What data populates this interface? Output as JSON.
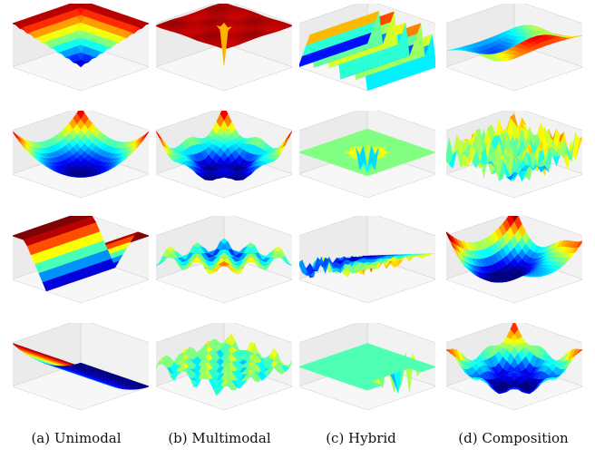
{
  "captions": {
    "a": "(a) Unimodal",
    "b": "(b) Multimodal",
    "c": "(c) Hybrid",
    "d": "(d) Composition"
  },
  "colormap": [
    "#00007f",
    "#0000ff",
    "#0080ff",
    "#00ffff",
    "#80ff80",
    "#ffff00",
    "#ff8000",
    "#ff0000",
    "#7f0000"
  ],
  "rows": [
    [
      {
        "id": "a1",
        "surface": "v-shape"
      },
      {
        "id": "b1",
        "surface": "flat-plateau-with-spike"
      },
      {
        "id": "c1",
        "surface": "stacked-ridges"
      },
      {
        "id": "d1",
        "surface": "wavy-sheet"
      }
    ],
    [
      {
        "id": "a2",
        "surface": "bowl"
      },
      {
        "id": "b2",
        "surface": "bumpy-bowl"
      },
      {
        "id": "c2",
        "surface": "plateau-with-crater"
      },
      {
        "id": "d2",
        "surface": "noisy-field"
      }
    ],
    [
      {
        "id": "a3",
        "surface": "valley"
      },
      {
        "id": "b3",
        "surface": "ripple-field"
      },
      {
        "id": "c3",
        "surface": "ramp-spikes"
      },
      {
        "id": "d3",
        "surface": "saddle-bowl"
      }
    ],
    [
      {
        "id": "a4",
        "surface": "ramp-sheet"
      },
      {
        "id": "b4",
        "surface": "dense-ripple-field"
      },
      {
        "id": "c4",
        "surface": "flat-with-spikes"
      },
      {
        "id": "d4",
        "surface": "rippled-bowl"
      }
    ]
  ]
}
